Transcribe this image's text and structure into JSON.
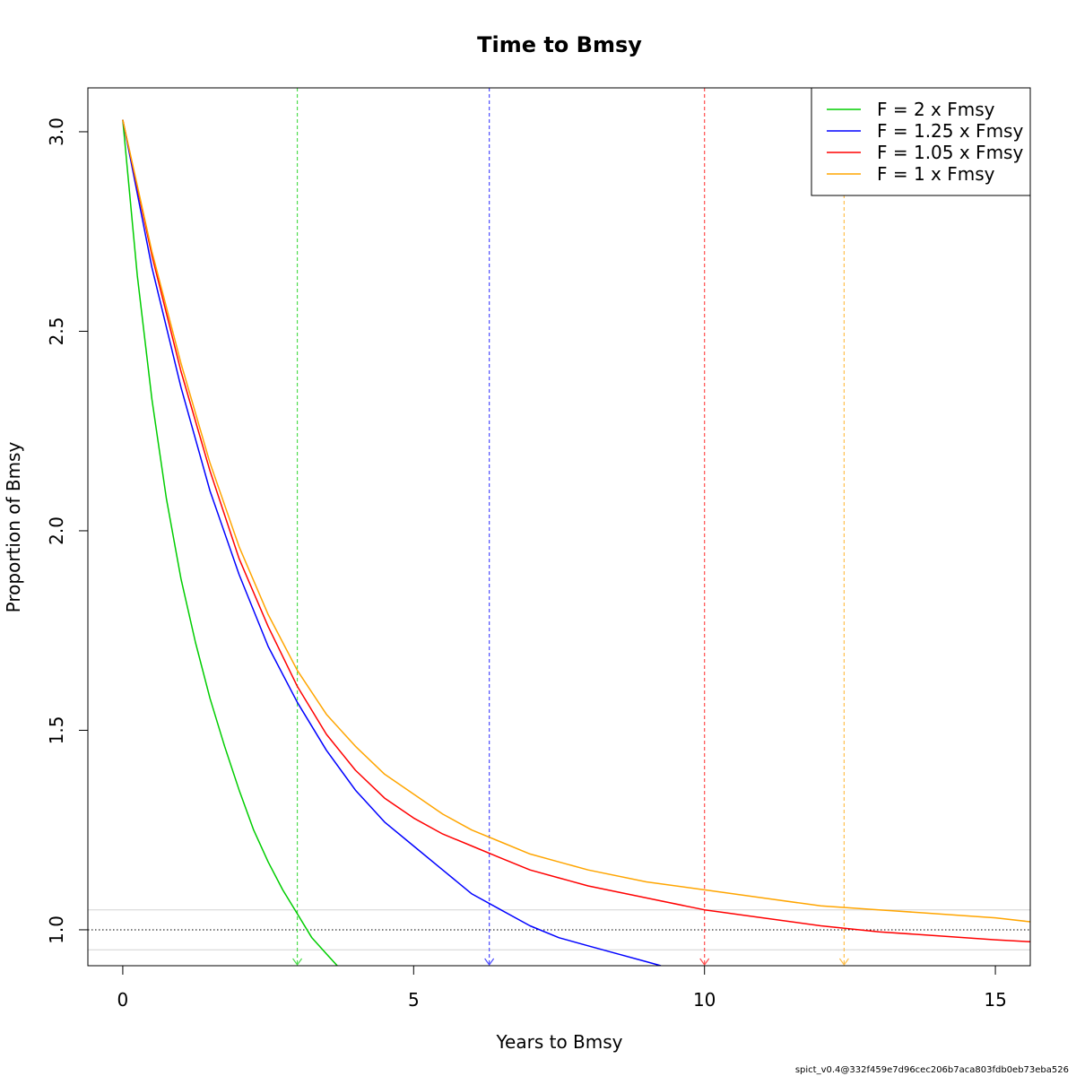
{
  "chart_data": {
    "type": "line",
    "title": "Time to Bmsy",
    "xlabel": "Years to Bmsy",
    "ylabel": "Proportion of Bmsy",
    "xlim": [
      -0.6,
      15.6
    ],
    "ylim": [
      0.91,
      3.11
    ],
    "x_ticks": [
      0,
      5,
      10,
      15
    ],
    "x_tick_labels": [
      "0",
      "5",
      "10",
      "15"
    ],
    "y_ticks": [
      1.0,
      1.5,
      2.0,
      2.5,
      3.0
    ],
    "y_tick_labels": [
      "1.0",
      "1.5",
      "2.0",
      "2.5",
      "3.0"
    ],
    "grid": false,
    "legend_position": "top-right",
    "initial_value": 3.03,
    "reference_lines": [
      {
        "y": 1.0,
        "style": "dotted",
        "color": "#000000"
      },
      {
        "y": 1.05,
        "style": "solid",
        "color": "#d3d3d3"
      },
      {
        "y": 0.95,
        "style": "solid",
        "color": "#d3d3d3"
      }
    ],
    "series": [
      {
        "name": "F = 2 x Fmsy",
        "color": "#00cd00",
        "time_to_bmsy": 3.0,
        "x": [
          0,
          0.25,
          0.5,
          0.75,
          1.0,
          1.25,
          1.5,
          1.75,
          2.0,
          2.25,
          2.5,
          2.75,
          3.0,
          3.25,
          3.5,
          3.75
        ],
        "y": [
          3.03,
          2.64,
          2.33,
          2.08,
          1.88,
          1.72,
          1.58,
          1.46,
          1.35,
          1.25,
          1.17,
          1.1,
          1.04,
          0.98,
          0.94,
          0.9
        ]
      },
      {
        "name": "F = 1.25 x Fmsy",
        "color": "#0000ff",
        "time_to_bmsy": 6.3,
        "x": [
          0,
          0.5,
          1.0,
          1.5,
          2.0,
          2.5,
          3.0,
          3.5,
          4.0,
          4.5,
          5.0,
          5.5,
          6.0,
          6.5,
          7.0,
          7.5,
          8.0,
          8.5,
          9.0,
          9.25
        ],
        "y": [
          3.03,
          2.66,
          2.36,
          2.1,
          1.89,
          1.71,
          1.57,
          1.45,
          1.35,
          1.27,
          1.21,
          1.15,
          1.09,
          1.05,
          1.01,
          0.98,
          0.96,
          0.94,
          0.92,
          0.91
        ]
      },
      {
        "name": "F = 1.05 x Fmsy",
        "color": "#ff0000",
        "time_to_bmsy": 10.0,
        "x": [
          0,
          0.5,
          1.0,
          1.5,
          2.0,
          2.5,
          3.0,
          3.5,
          4.0,
          4.5,
          5.0,
          5.5,
          6.0,
          6.5,
          7.0,
          7.5,
          8.0,
          9.0,
          10.0,
          11.0,
          12.0,
          13.0,
          14.0,
          15.0,
          15.6
        ],
        "y": [
          3.03,
          2.69,
          2.4,
          2.15,
          1.93,
          1.76,
          1.61,
          1.49,
          1.4,
          1.33,
          1.28,
          1.24,
          1.21,
          1.18,
          1.15,
          1.13,
          1.11,
          1.08,
          1.05,
          1.03,
          1.01,
          0.995,
          0.985,
          0.975,
          0.97
        ]
      },
      {
        "name": "F = 1 x Fmsy",
        "color": "#ffa500",
        "time_to_bmsy": 12.4,
        "x": [
          0,
          0.5,
          1.0,
          1.5,
          2.0,
          2.5,
          3.0,
          3.5,
          4.0,
          4.5,
          5.0,
          5.5,
          6.0,
          6.5,
          7.0,
          7.5,
          8.0,
          9.0,
          10.0,
          11.0,
          12.0,
          13.0,
          14.0,
          15.0,
          15.6
        ],
        "y": [
          3.03,
          2.7,
          2.42,
          2.17,
          1.96,
          1.79,
          1.65,
          1.54,
          1.46,
          1.39,
          1.34,
          1.29,
          1.25,
          1.22,
          1.19,
          1.17,
          1.15,
          1.12,
          1.1,
          1.08,
          1.06,
          1.05,
          1.04,
          1.03,
          1.02
        ]
      }
    ]
  },
  "footer": {
    "version_text": "spict_v0.4@332f459e7d96cec206b7aca803fdb0eb73eba526"
  }
}
